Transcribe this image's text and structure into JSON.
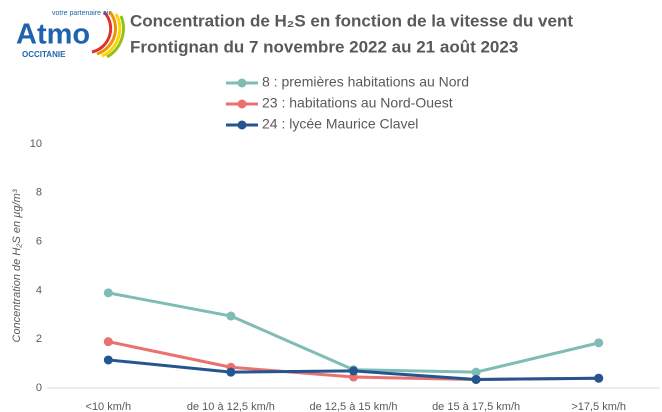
{
  "logo": {
    "name": "Atmo",
    "tagline": "votre partenaire air",
    "region": "OCCITANIE"
  },
  "chart_data": {
    "type": "line",
    "title": "Concentration de H₂S en fonction de la vitesse du vent",
    "subtitle": "Frontignan du 7 novembre 2022 au 21 août 2023",
    "y_label": "Concentration de H₂S en µg/m³",
    "categories": [
      "<10 km/h",
      "de 10 à 12,5 km/h",
      "de 12,5 à 15 km/h",
      "de 15 à 17,5 km/h",
      ">17,5 km/h"
    ],
    "series": [
      {
        "name": "8 : premières habitations au Nord",
        "color": "#7fbcb6",
        "values": [
          3.9,
          2.95,
          0.75,
          0.65,
          1.85
        ]
      },
      {
        "name": "23 : habitations au Nord-Ouest",
        "color": "#e9716f",
        "values": [
          1.9,
          0.85,
          0.45,
          0.35,
          0.4
        ]
      },
      {
        "name": "24 : lycée Maurice Clavel",
        "color": "#24558f",
        "values": [
          1.15,
          0.65,
          0.7,
          0.35,
          0.4
        ]
      }
    ],
    "ylim": [
      0,
      10
    ],
    "yticks": [
      0,
      2,
      4,
      6,
      8,
      10
    ],
    "grid": false
  }
}
